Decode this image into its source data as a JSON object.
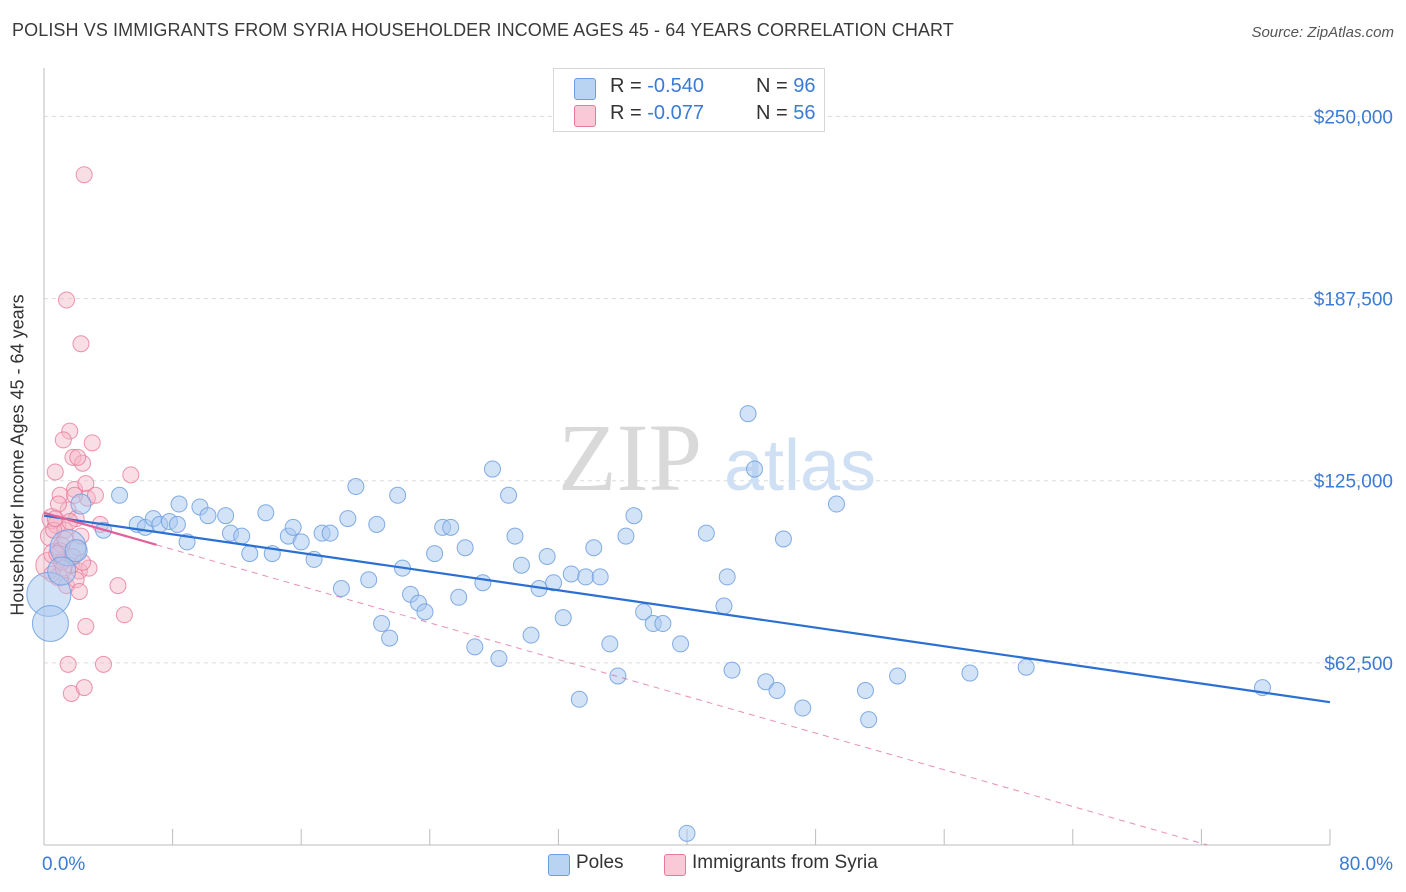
{
  "header": {
    "title": "POLISH VS IMMIGRANTS FROM SYRIA HOUSEHOLDER INCOME AGES 45 - 64 YEARS CORRELATION CHART",
    "source": "Source: ZipAtlas.com"
  },
  "legend_top": {
    "rows": [
      {
        "r_label": "R = ",
        "r_value": "-0.540",
        "n_label": "N = ",
        "n_value": "96"
      },
      {
        "r_label": "R = ",
        "r_value": "-0.077",
        "n_label": "N = ",
        "n_value": "56"
      }
    ]
  },
  "watermark": {
    "zip": "ZIP",
    "atlas": "atlas"
  },
  "chart_data": {
    "type": "scatter",
    "xlabel": "",
    "ylabel": "Householder Income Ages 45 - 64 years",
    "xlim": [
      0,
      80
    ],
    "ylim": [
      0,
      262500
    ],
    "x_tick_labels": [
      "0.0%",
      "80.0%"
    ],
    "y_ticks": [
      62500,
      125000,
      187500,
      250000
    ],
    "y_tick_labels": [
      "$62,500",
      "$125,000",
      "$187,500",
      "$250,000"
    ],
    "grid": "horizontal dashed",
    "legend_position": "top-center and bottom",
    "colors": {
      "poles_fill": "#a8c8f0",
      "poles_edge": "#6d9fe0",
      "poles_line": "#2a6fd1",
      "syria_fill": "#f5b6c8",
      "syria_edge": "#e8799a",
      "syria_line": "#e0609a",
      "tick_text": "#3a7bd5"
    },
    "series": [
      {
        "name": "Poles",
        "trend": {
          "x": [
            0,
            80
          ],
          "y": [
            113000,
            49000
          ]
        },
        "points": [
          [
            0.3,
            86000,
            2.2
          ],
          [
            0.4,
            76000,
            1.8
          ],
          [
            1.5,
            102000,
            1.8
          ],
          [
            1.1,
            94000,
            1.4
          ],
          [
            2.0,
            101000,
            1.1
          ],
          [
            2.3,
            117000,
            1.0
          ],
          [
            3.7,
            108000,
            0.8
          ],
          [
            4.7,
            120000,
            0.8
          ],
          [
            5.8,
            110000,
            0.8
          ],
          [
            6.3,
            109000,
            0.8
          ],
          [
            6.8,
            112000,
            0.8
          ],
          [
            7.2,
            110000,
            0.8
          ],
          [
            7.8,
            111000,
            0.8
          ],
          [
            8.3,
            110000,
            0.8
          ],
          [
            8.4,
            117000,
            0.8
          ],
          [
            8.9,
            104000,
            0.8
          ],
          [
            9.7,
            116000,
            0.8
          ],
          [
            10.2,
            113000,
            0.8
          ],
          [
            11.3,
            113000,
            0.8
          ],
          [
            11.6,
            107000,
            0.8
          ],
          [
            12.3,
            106000,
            0.8
          ],
          [
            12.8,
            100000,
            0.8
          ],
          [
            13.8,
            114000,
            0.8
          ],
          [
            14.2,
            100000,
            0.8
          ],
          [
            15.2,
            106000,
            0.8
          ],
          [
            15.5,
            109000,
            0.8
          ],
          [
            16.0,
            104000,
            0.8
          ],
          [
            16.8,
            98000,
            0.8
          ],
          [
            17.3,
            107000,
            0.8
          ],
          [
            17.8,
            107000,
            0.8
          ],
          [
            18.5,
            88000,
            0.8
          ],
          [
            18.9,
            112000,
            0.8
          ],
          [
            19.4,
            123000,
            0.8
          ],
          [
            20.2,
            91000,
            0.8
          ],
          [
            20.7,
            110000,
            0.8
          ],
          [
            21.0,
            76000,
            0.8
          ],
          [
            21.5,
            71000,
            0.8
          ],
          [
            22.0,
            120000,
            0.8
          ],
          [
            22.3,
            95000,
            0.8
          ],
          [
            22.8,
            86000,
            0.8
          ],
          [
            23.3,
            83000,
            0.8
          ],
          [
            23.7,
            80000,
            0.8
          ],
          [
            24.3,
            100000,
            0.8
          ],
          [
            24.8,
            109000,
            0.8
          ],
          [
            25.3,
            109000,
            0.8
          ],
          [
            25.8,
            85000,
            0.8
          ],
          [
            26.2,
            102000,
            0.8
          ],
          [
            26.8,
            68000,
            0.8
          ],
          [
            27.3,
            90000,
            0.8
          ],
          [
            27.9,
            129000,
            0.8
          ],
          [
            28.3,
            64000,
            0.8
          ],
          [
            28.9,
            120000,
            0.8
          ],
          [
            29.3,
            106000,
            0.8
          ],
          [
            29.7,
            96000,
            0.8
          ],
          [
            30.3,
            72000,
            0.8
          ],
          [
            30.8,
            88000,
            0.8
          ],
          [
            31.3,
            99000,
            0.8
          ],
          [
            31.7,
            90000,
            0.8
          ],
          [
            32.3,
            78000,
            0.8
          ],
          [
            32.8,
            93000,
            0.8
          ],
          [
            33.3,
            50000,
            0.8
          ],
          [
            33.7,
            92000,
            0.8
          ],
          [
            34.2,
            102000,
            0.8
          ],
          [
            34.6,
            92000,
            0.8
          ],
          [
            35.2,
            69000,
            0.8
          ],
          [
            35.7,
            58000,
            0.8
          ],
          [
            36.2,
            106000,
            0.8
          ],
          [
            36.7,
            113000,
            0.8
          ],
          [
            37.3,
            80000,
            0.8
          ],
          [
            37.9,
            76000,
            0.8
          ],
          [
            38.5,
            76000,
            0.8
          ],
          [
            39.6,
            69000,
            0.8
          ],
          [
            40.0,
            4000,
            0.8
          ],
          [
            41.2,
            107000,
            0.8
          ],
          [
            42.3,
            82000,
            0.8
          ],
          [
            42.5,
            92000,
            0.8
          ],
          [
            42.8,
            60000,
            0.8
          ],
          [
            43.8,
            148000,
            0.8
          ],
          [
            44.2,
            129000,
            0.8
          ],
          [
            44.9,
            56000,
            0.8
          ],
          [
            45.6,
            53000,
            0.8
          ],
          [
            46.0,
            105000,
            0.8
          ],
          [
            47.2,
            47000,
            0.8
          ],
          [
            49.3,
            117000,
            0.8
          ],
          [
            51.1,
            53000,
            0.8
          ],
          [
            51.3,
            43000,
            0.8
          ],
          [
            53.1,
            58000,
            0.8
          ],
          [
            57.6,
            59000,
            0.8
          ],
          [
            61.1,
            61000,
            0.8
          ],
          [
            75.8,
            54000,
            0.8
          ]
        ]
      },
      {
        "name": "Immigrants from Syria",
        "trend": {
          "x": [
            0,
            7
          ],
          "y": [
            114000,
            103000
          ],
          "extension": {
            "x": [
              7,
              80
            ],
            "y": [
              103000,
              -12000
            ]
          }
        },
        "points": [
          [
            0.3,
            96000,
            1.3
          ],
          [
            0.4,
            106000,
            1.0
          ],
          [
            0.5,
            112000,
            1.0
          ],
          [
            0.6,
            100000,
            1.0
          ],
          [
            0.8,
            110000,
            0.9
          ],
          [
            0.9,
            92000,
            0.9
          ],
          [
            1.0,
            120000,
            0.8
          ],
          [
            1.1,
            103000,
            0.8
          ],
          [
            1.2,
            98000,
            0.8
          ],
          [
            1.3,
            108000,
            0.8
          ],
          [
            1.4,
            89000,
            0.8
          ],
          [
            1.5,
            115000,
            0.8
          ],
          [
            1.6,
            142000,
            0.8
          ],
          [
            1.7,
            96000,
            0.8
          ],
          [
            1.8,
            133000,
            0.8
          ],
          [
            1.9,
            122000,
            0.8
          ],
          [
            2.0,
            112000,
            0.8
          ],
          [
            2.1,
            102000,
            0.8
          ],
          [
            2.2,
            94000,
            0.8
          ],
          [
            2.3,
            172000,
            0.8
          ],
          [
            2.4,
            131000,
            0.8
          ],
          [
            2.5,
            230000,
            0.8
          ],
          [
            2.6,
            124000,
            0.8
          ],
          [
            2.7,
            119000,
            0.8
          ],
          [
            2.8,
            95000,
            0.8
          ],
          [
            1.4,
            187000,
            0.8
          ],
          [
            1.2,
            139000,
            0.8
          ],
          [
            1.5,
            62000,
            0.8
          ],
          [
            1.7,
            52000,
            0.8
          ],
          [
            2.5,
            54000,
            0.8
          ],
          [
            2.6,
            75000,
            0.8
          ],
          [
            3.0,
            138000,
            0.8
          ],
          [
            3.2,
            120000,
            0.8
          ],
          [
            3.5,
            110000,
            0.8
          ],
          [
            3.7,
            62000,
            0.8
          ],
          [
            4.6,
            89000,
            0.8
          ],
          [
            5.0,
            79000,
            0.8
          ],
          [
            5.4,
            127000,
            0.8
          ],
          [
            0.7,
            128000,
            0.8
          ],
          [
            0.9,
            117000,
            0.8
          ],
          [
            1.0,
            101000,
            0.8
          ],
          [
            1.1,
            97000,
            0.8
          ],
          [
            1.3,
            105000,
            0.8
          ],
          [
            1.6,
            111000,
            0.8
          ],
          [
            1.8,
            99000,
            0.8
          ],
          [
            2.0,
            91000,
            0.8
          ],
          [
            2.2,
            87000,
            0.8
          ],
          [
            2.3,
            106000,
            0.8
          ],
          [
            0.6,
            108000,
            0.8
          ],
          [
            0.5,
            93000,
            0.8
          ],
          [
            0.8,
            100000,
            0.8
          ],
          [
            1.2,
            95000,
            0.8
          ],
          [
            1.9,
            120000,
            0.8
          ],
          [
            2.1,
            133000,
            0.8
          ],
          [
            2.4,
            97000,
            0.8
          ],
          [
            0.7,
            112000,
            0.8
          ]
        ]
      }
    ]
  },
  "bottom_legend": {
    "items": [
      {
        "label": "Poles"
      },
      {
        "label": "Immigrants from Syria"
      }
    ]
  }
}
